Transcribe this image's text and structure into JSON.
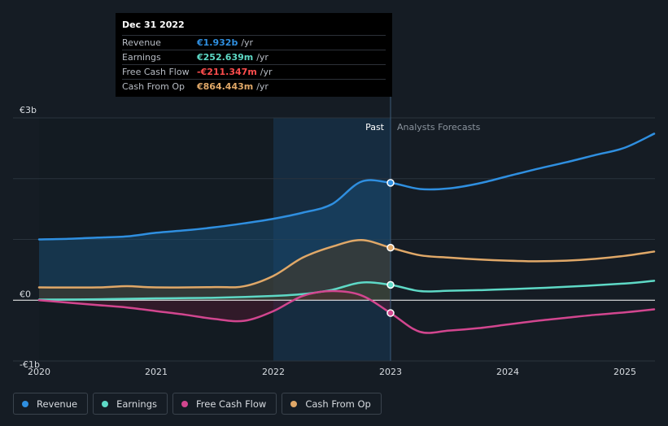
{
  "chart_data": {
    "type": "line",
    "title": "",
    "xlabel": "",
    "ylabel": "",
    "y_axis_labels": [
      {
        "value": 3000,
        "label": "€3b"
      },
      {
        "value": 0,
        "label": "€0"
      },
      {
        "value": -1000,
        "label": "-€1b"
      }
    ],
    "ylim": [
      -1000,
      3000
    ],
    "xlim": [
      2020.0,
      2025.25
    ],
    "x_ticks": [
      {
        "value": 2020,
        "label": "2020"
      },
      {
        "value": 2021,
        "label": "2021"
      },
      {
        "value": 2022,
        "label": "2022"
      },
      {
        "value": 2023,
        "label": "2023"
      },
      {
        "value": 2024,
        "label": "2024"
      },
      {
        "value": 2025,
        "label": "2025"
      }
    ],
    "divider": {
      "x": 2023.0,
      "past_label": "Past",
      "forecast_label": "Analysts Forecasts"
    },
    "series": [
      {
        "name": "Revenue",
        "color": "#2f8fe0",
        "fill": "#1a4a70",
        "points": [
          [
            2020.0,
            1000
          ],
          [
            2020.25,
            1010
          ],
          [
            2020.5,
            1030
          ],
          [
            2020.75,
            1050
          ],
          [
            2021.0,
            1110
          ],
          [
            2021.25,
            1150
          ],
          [
            2021.5,
            1200
          ],
          [
            2021.75,
            1265
          ],
          [
            2022.0,
            1340
          ],
          [
            2022.25,
            1440
          ],
          [
            2022.5,
            1580
          ],
          [
            2022.75,
            1950
          ],
          [
            2023.0,
            1932
          ],
          [
            2023.25,
            1830
          ],
          [
            2023.5,
            1840
          ],
          [
            2023.75,
            1920
          ],
          [
            2024.0,
            2040
          ],
          [
            2024.25,
            2160
          ],
          [
            2024.5,
            2270
          ],
          [
            2024.75,
            2390
          ],
          [
            2025.0,
            2510
          ],
          [
            2025.25,
            2740
          ]
        ]
      },
      {
        "name": "Earnings",
        "color": "#5ed9c6",
        "fill": "#1f4a44",
        "points": [
          [
            2020.0,
            10
          ],
          [
            2020.5,
            15
          ],
          [
            2021.0,
            30
          ],
          [
            2021.5,
            40
          ],
          [
            2022.0,
            70
          ],
          [
            2022.25,
            100
          ],
          [
            2022.5,
            170
          ],
          [
            2022.75,
            290
          ],
          [
            2023.0,
            252.639
          ],
          [
            2023.25,
            150
          ],
          [
            2023.5,
            155
          ],
          [
            2023.75,
            165
          ],
          [
            2024.0,
            180
          ],
          [
            2024.5,
            220
          ],
          [
            2025.0,
            275
          ],
          [
            2025.25,
            320
          ]
        ]
      },
      {
        "name": "Free Cash Flow",
        "color": "#d2468f",
        "fill": "#4a1a30",
        "points": [
          [
            2020.0,
            0
          ],
          [
            2020.5,
            -80
          ],
          [
            2020.75,
            -120
          ],
          [
            2021.0,
            -180
          ],
          [
            2021.25,
            -240
          ],
          [
            2021.5,
            -310
          ],
          [
            2021.75,
            -340
          ],
          [
            2022.0,
            -180
          ],
          [
            2022.25,
            70
          ],
          [
            2022.5,
            150
          ],
          [
            2022.75,
            80
          ],
          [
            2023.0,
            -211.347
          ],
          [
            2023.25,
            -520
          ],
          [
            2023.5,
            -500
          ],
          [
            2023.75,
            -460
          ],
          [
            2024.0,
            -400
          ],
          [
            2024.25,
            -340
          ],
          [
            2024.5,
            -290
          ],
          [
            2024.75,
            -240
          ],
          [
            2025.0,
            -200
          ],
          [
            2025.25,
            -150
          ]
        ]
      },
      {
        "name": "Cash From Op",
        "color": "#e0a868",
        "fill": "#4a3a26",
        "points": [
          [
            2020.0,
            210
          ],
          [
            2020.5,
            210
          ],
          [
            2020.75,
            230
          ],
          [
            2021.0,
            210
          ],
          [
            2021.5,
            215
          ],
          [
            2021.75,
            230
          ],
          [
            2022.0,
            400
          ],
          [
            2022.25,
            700
          ],
          [
            2022.5,
            880
          ],
          [
            2022.75,
            990
          ],
          [
            2023.0,
            864.443
          ],
          [
            2023.25,
            740
          ],
          [
            2023.5,
            700
          ],
          [
            2023.75,
            670
          ],
          [
            2024.0,
            650
          ],
          [
            2024.25,
            640
          ],
          [
            2024.5,
            650
          ],
          [
            2024.75,
            680
          ],
          [
            2025.0,
            730
          ],
          [
            2025.25,
            800
          ]
        ]
      }
    ]
  },
  "tooltip": {
    "date": "Dec 31 2022",
    "rows": [
      {
        "label": "Revenue",
        "value": "€1.932b",
        "unit": "/yr",
        "color": "#2f8fe0"
      },
      {
        "label": "Earnings",
        "value": "€252.639m",
        "unit": "/yr",
        "color": "#5ed9c6"
      },
      {
        "label": "Free Cash Flow",
        "value": "-€211.347m",
        "unit": "/yr",
        "color": "#ff4d4d"
      },
      {
        "label": "Cash From Op",
        "value": "€864.443m",
        "unit": "/yr",
        "color": "#e0a868"
      }
    ]
  },
  "legend": [
    {
      "label": "Revenue",
      "color": "#2f8fe0"
    },
    {
      "label": "Earnings",
      "color": "#5ed9c6"
    },
    {
      "label": "Free Cash Flow",
      "color": "#d2468f"
    },
    {
      "label": "Cash From Op",
      "color": "#e0a868"
    }
  ]
}
